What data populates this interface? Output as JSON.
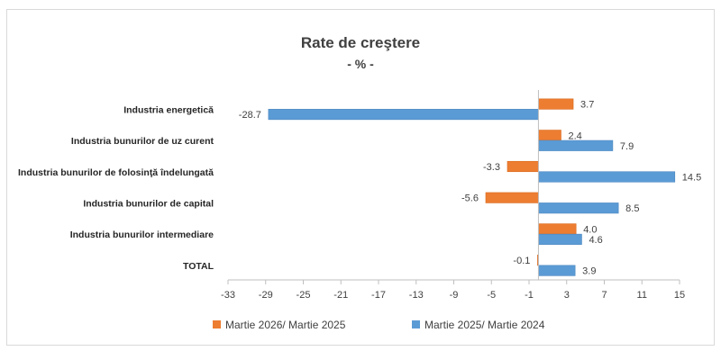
{
  "chart_data": {
    "type": "bar",
    "orientation": "horizontal",
    "title": "Rate de creştere",
    "subtitle": "- % -",
    "categories": [
      "Industria energetică",
      "Industria bunurilor de uz curent",
      "Industria bunurilor de folosinţă îndelungată",
      "Industria bunurilor de capital",
      "Industria bunurilor intermediare",
      "TOTAL"
    ],
    "series": [
      {
        "name": "Martie 2026/ Martie 2025",
        "color": "#ed7d31",
        "values": [
          3.7,
          2.4,
          -3.3,
          -5.6,
          4.0,
          -0.1
        ]
      },
      {
        "name": "Martie 2025/ Martie 2024",
        "color": "#5b9bd5",
        "values": [
          -28.7,
          7.9,
          14.5,
          8.5,
          4.6,
          3.9
        ]
      }
    ],
    "xlim": [
      -33,
      15
    ],
    "xticks": [
      "-33",
      "-29",
      "-25",
      "-21",
      "-17",
      "-13",
      "-9",
      "-5",
      "-1",
      "3",
      "7",
      "11",
      "15"
    ],
    "grid": false,
    "legend_position": "bottom"
  }
}
